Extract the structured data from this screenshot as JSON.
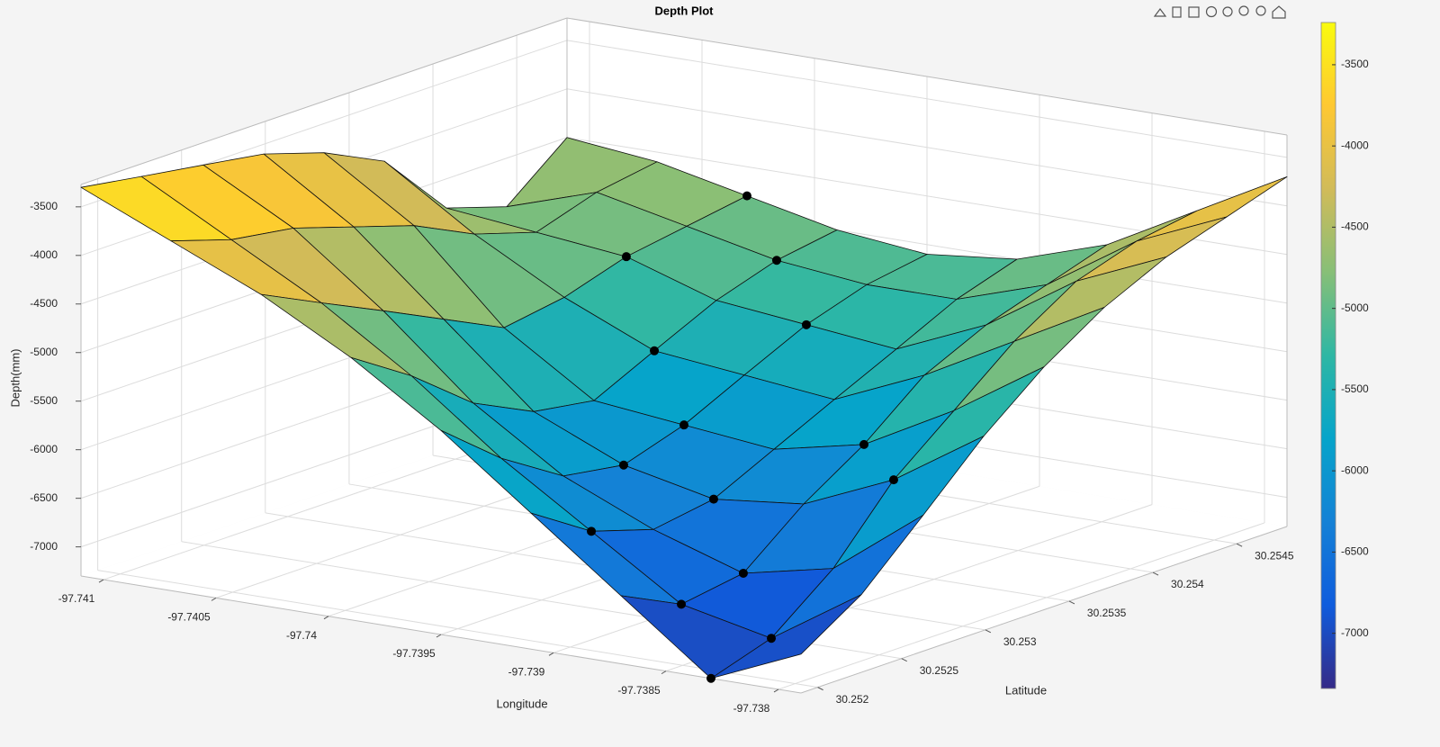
{
  "chart_data": {
    "type": "surface",
    "title": "Depth Plot",
    "xlabel": "Longitude",
    "ylabel": "Latitude",
    "zlabel": "Depth(mm)",
    "xlim": [
      -97.7411,
      -97.7379
    ],
    "ylim": [
      30.2519,
      30.2548
    ],
    "zlim": [
      -7300,
      -3270
    ],
    "xticks": [
      -97.741,
      -97.7405,
      -97.74,
      -97.7395,
      -97.739,
      -97.7385,
      -97.738
    ],
    "yticks": [
      30.252,
      30.2525,
      30.253,
      30.2535,
      30.254,
      30.2545
    ],
    "zticks": [
      -3500,
      -4000,
      -4500,
      -5000,
      -5500,
      -6000,
      -6500,
      -7000
    ],
    "grid": true,
    "x": [
      -97.7411,
      -97.7407,
      -97.7403,
      -97.7399,
      -97.7395,
      -97.7391,
      -97.7387,
      -97.7383,
      -97.7379
    ],
    "y": [
      30.2519,
      30.25226,
      30.25263,
      30.25299,
      30.25335,
      30.25371,
      30.25408,
      30.25444,
      30.2548
    ],
    "z": [
      [
        -3300,
        -3700,
        -4100,
        -4600,
        -5200,
        -5900,
        -6600,
        -7300,
        -6900
      ],
      [
        -3400,
        -3900,
        -4400,
        -5000,
        -5700,
        -6300,
        -6900,
        -7100,
        -6500
      ],
      [
        -3500,
        -4000,
        -4700,
        -5500,
        -6100,
        -6500,
        -6800,
        -6600,
        -5900
      ],
      [
        -3600,
        -4200,
        -5000,
        -5800,
        -6200,
        -6400,
        -6300,
        -5900,
        -5300
      ],
      [
        -3800,
        -4400,
        -5300,
        -5900,
        -6000,
        -6100,
        -5900,
        -5400,
        -4800
      ],
      [
        -4100,
        -4700,
        -5200,
        -5600,
        -5700,
        -5800,
        -5400,
        -4900,
        -4400
      ],
      [
        -4800,
        -4900,
        -5000,
        -5300,
        -5400,
        -5500,
        -5100,
        -4500,
        -4100
      ],
      [
        -5000,
        -4700,
        -4900,
        -5100,
        -5200,
        -5200,
        -4900,
        -4300,
        -3900
      ],
      [
        -4500,
        -4600,
        -4800,
        -5000,
        -5100,
        -5000,
        -4700,
        -4200,
        -3700
      ]
    ],
    "edge_color": "#111111",
    "colormap": [
      "#352a87",
      "#0f5cdd",
      "#1481d6",
      "#06a4ca",
      "#2eb7a4",
      "#87bf77",
      "#d1bb59",
      "#fec832",
      "#f9fb0e"
    ],
    "clim": [
      -7340,
      -3240
    ],
    "colorbar_ticks": [
      -3500,
      -4000,
      -4500,
      -5000,
      -5500,
      -6000,
      -6500,
      -7000
    ],
    "points": {
      "color": "#000000",
      "x": [
        -97.7383,
        -97.7387,
        -97.7383,
        -97.7391,
        -97.7387,
        -97.7391,
        -97.7395,
        -97.7395,
        -97.7399,
        -97.7395,
        -97.7399,
        -97.7403,
        -97.7387,
        -97.7383,
        -97.7403
      ],
      "y": [
        30.2519,
        30.25226,
        30.25226,
        30.25226,
        30.25263,
        30.25299,
        30.25299,
        30.25335,
        30.25371,
        30.25408,
        30.25444,
        30.25408,
        30.25335,
        30.25299,
        30.2548
      ],
      "z": [
        -7300,
        -6900,
        -7100,
        -6300,
        -6800,
        -6400,
        -6200,
        -6000,
        -5600,
        -5400,
        -5100,
        -5000,
        -5900,
        -5900,
        -4800
      ]
    }
  }
}
